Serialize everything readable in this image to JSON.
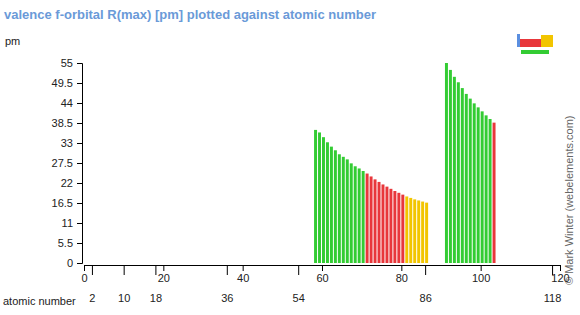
{
  "chart_data": {
    "type": "bar",
    "title": "valence f-orbital R(max) [pm] plotted against atomic number",
    "y_label": "pm",
    "x_label": "atomic number",
    "credit": "© Mark Winter (webelements.com)",
    "x": [
      58,
      59,
      60,
      61,
      62,
      63,
      64,
      65,
      66,
      67,
      68,
      69,
      70,
      71,
      72,
      73,
      74,
      75,
      76,
      77,
      78,
      79,
      80,
      81,
      82,
      83,
      84,
      85,
      86,
      91,
      92,
      93,
      94,
      95,
      96,
      97,
      98,
      99,
      100,
      101,
      102,
      103
    ],
    "values": [
      36.6,
      35.9,
      34.6,
      33.2,
      32.0,
      31.0,
      29.9,
      29.2,
      28.5,
      27.4,
      26.6,
      26.0,
      25.3,
      24.6,
      23.8,
      23.0,
      22.3,
      21.6,
      21.0,
      20.4,
      19.8,
      19.3,
      18.8,
      18.3,
      17.9,
      17.5,
      17.2,
      16.9,
      16.6,
      55.0,
      53.1,
      51.2,
      49.7,
      48.1,
      46.5,
      45.2,
      43.9,
      42.8,
      41.7,
      40.6,
      39.6,
      38.6
    ],
    "colors": [
      "#33cc33",
      "#33cc33",
      "#33cc33",
      "#33cc33",
      "#33cc33",
      "#33cc33",
      "#33cc33",
      "#33cc33",
      "#33cc33",
      "#33cc33",
      "#33cc33",
      "#33cc33",
      "#33cc33",
      "#e8373b",
      "#e8373b",
      "#e8373b",
      "#e8373b",
      "#e8373b",
      "#e8373b",
      "#e8373b",
      "#e8373b",
      "#e8373b",
      "#e8373b",
      "#f2c500",
      "#f2c500",
      "#f2c500",
      "#f2c500",
      "#f2c500",
      "#f2c500",
      "#33cc33",
      "#33cc33",
      "#33cc33",
      "#33cc33",
      "#33cc33",
      "#33cc33",
      "#33cc33",
      "#33cc33",
      "#33cc33",
      "#33cc33",
      "#33cc33",
      "#33cc33",
      "#e8373b"
    ],
    "xlim": [
      0,
      120
    ],
    "xticks": [
      0,
      20,
      40,
      60,
      80,
      100,
      120
    ],
    "x_lower_ticks": [
      2,
      10,
      18,
      36,
      54,
      86,
      118
    ],
    "ylim": [
      0,
      55
    ],
    "yticks": [
      0,
      5.5,
      11,
      16.5,
      22,
      27.5,
      33,
      38.5,
      44,
      49.5,
      55
    ],
    "grid": false
  }
}
